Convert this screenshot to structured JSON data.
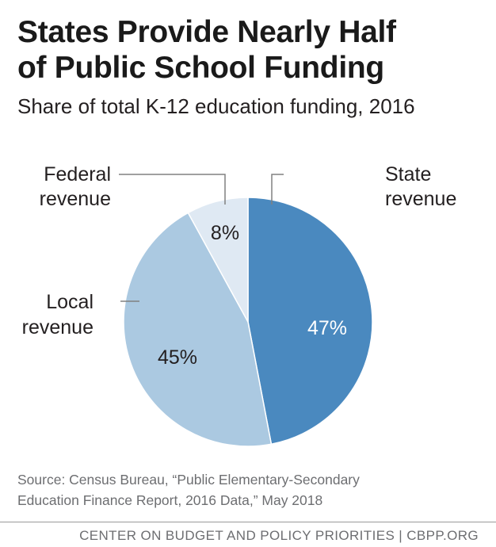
{
  "header": {
    "title_line1": "States Provide Nearly Half",
    "title_line2": "of Public School Funding",
    "subtitle": "Share of total K-12 education funding, 2016"
  },
  "chart_data": {
    "type": "pie",
    "start_angle_deg": 0,
    "direction": "clockwise",
    "slices": [
      {
        "label_line1": "State",
        "label_line2": "revenue",
        "value": 47,
        "value_label": "47%",
        "color": "#4a89bf",
        "value_text_color": "#ffffff"
      },
      {
        "label_line1": "Local",
        "label_line2": "revenue",
        "value": 45,
        "value_label": "45%",
        "color": "#abc9e1",
        "value_text_color": "#231f20"
      },
      {
        "label_line1": "Federal",
        "label_line2": "revenue",
        "value": 8,
        "value_label": "8%",
        "color": "#dfe9f3",
        "value_text_color": "#231f20"
      }
    ]
  },
  "source": {
    "line1": "Source: Census Bureau, “Public Elementary-Secondary",
    "line2": "Education Finance Report, 2016 Data,” May 2018"
  },
  "footer": {
    "text": "CENTER ON BUDGET AND POLICY PRIORITIES | CBPP.ORG"
  }
}
